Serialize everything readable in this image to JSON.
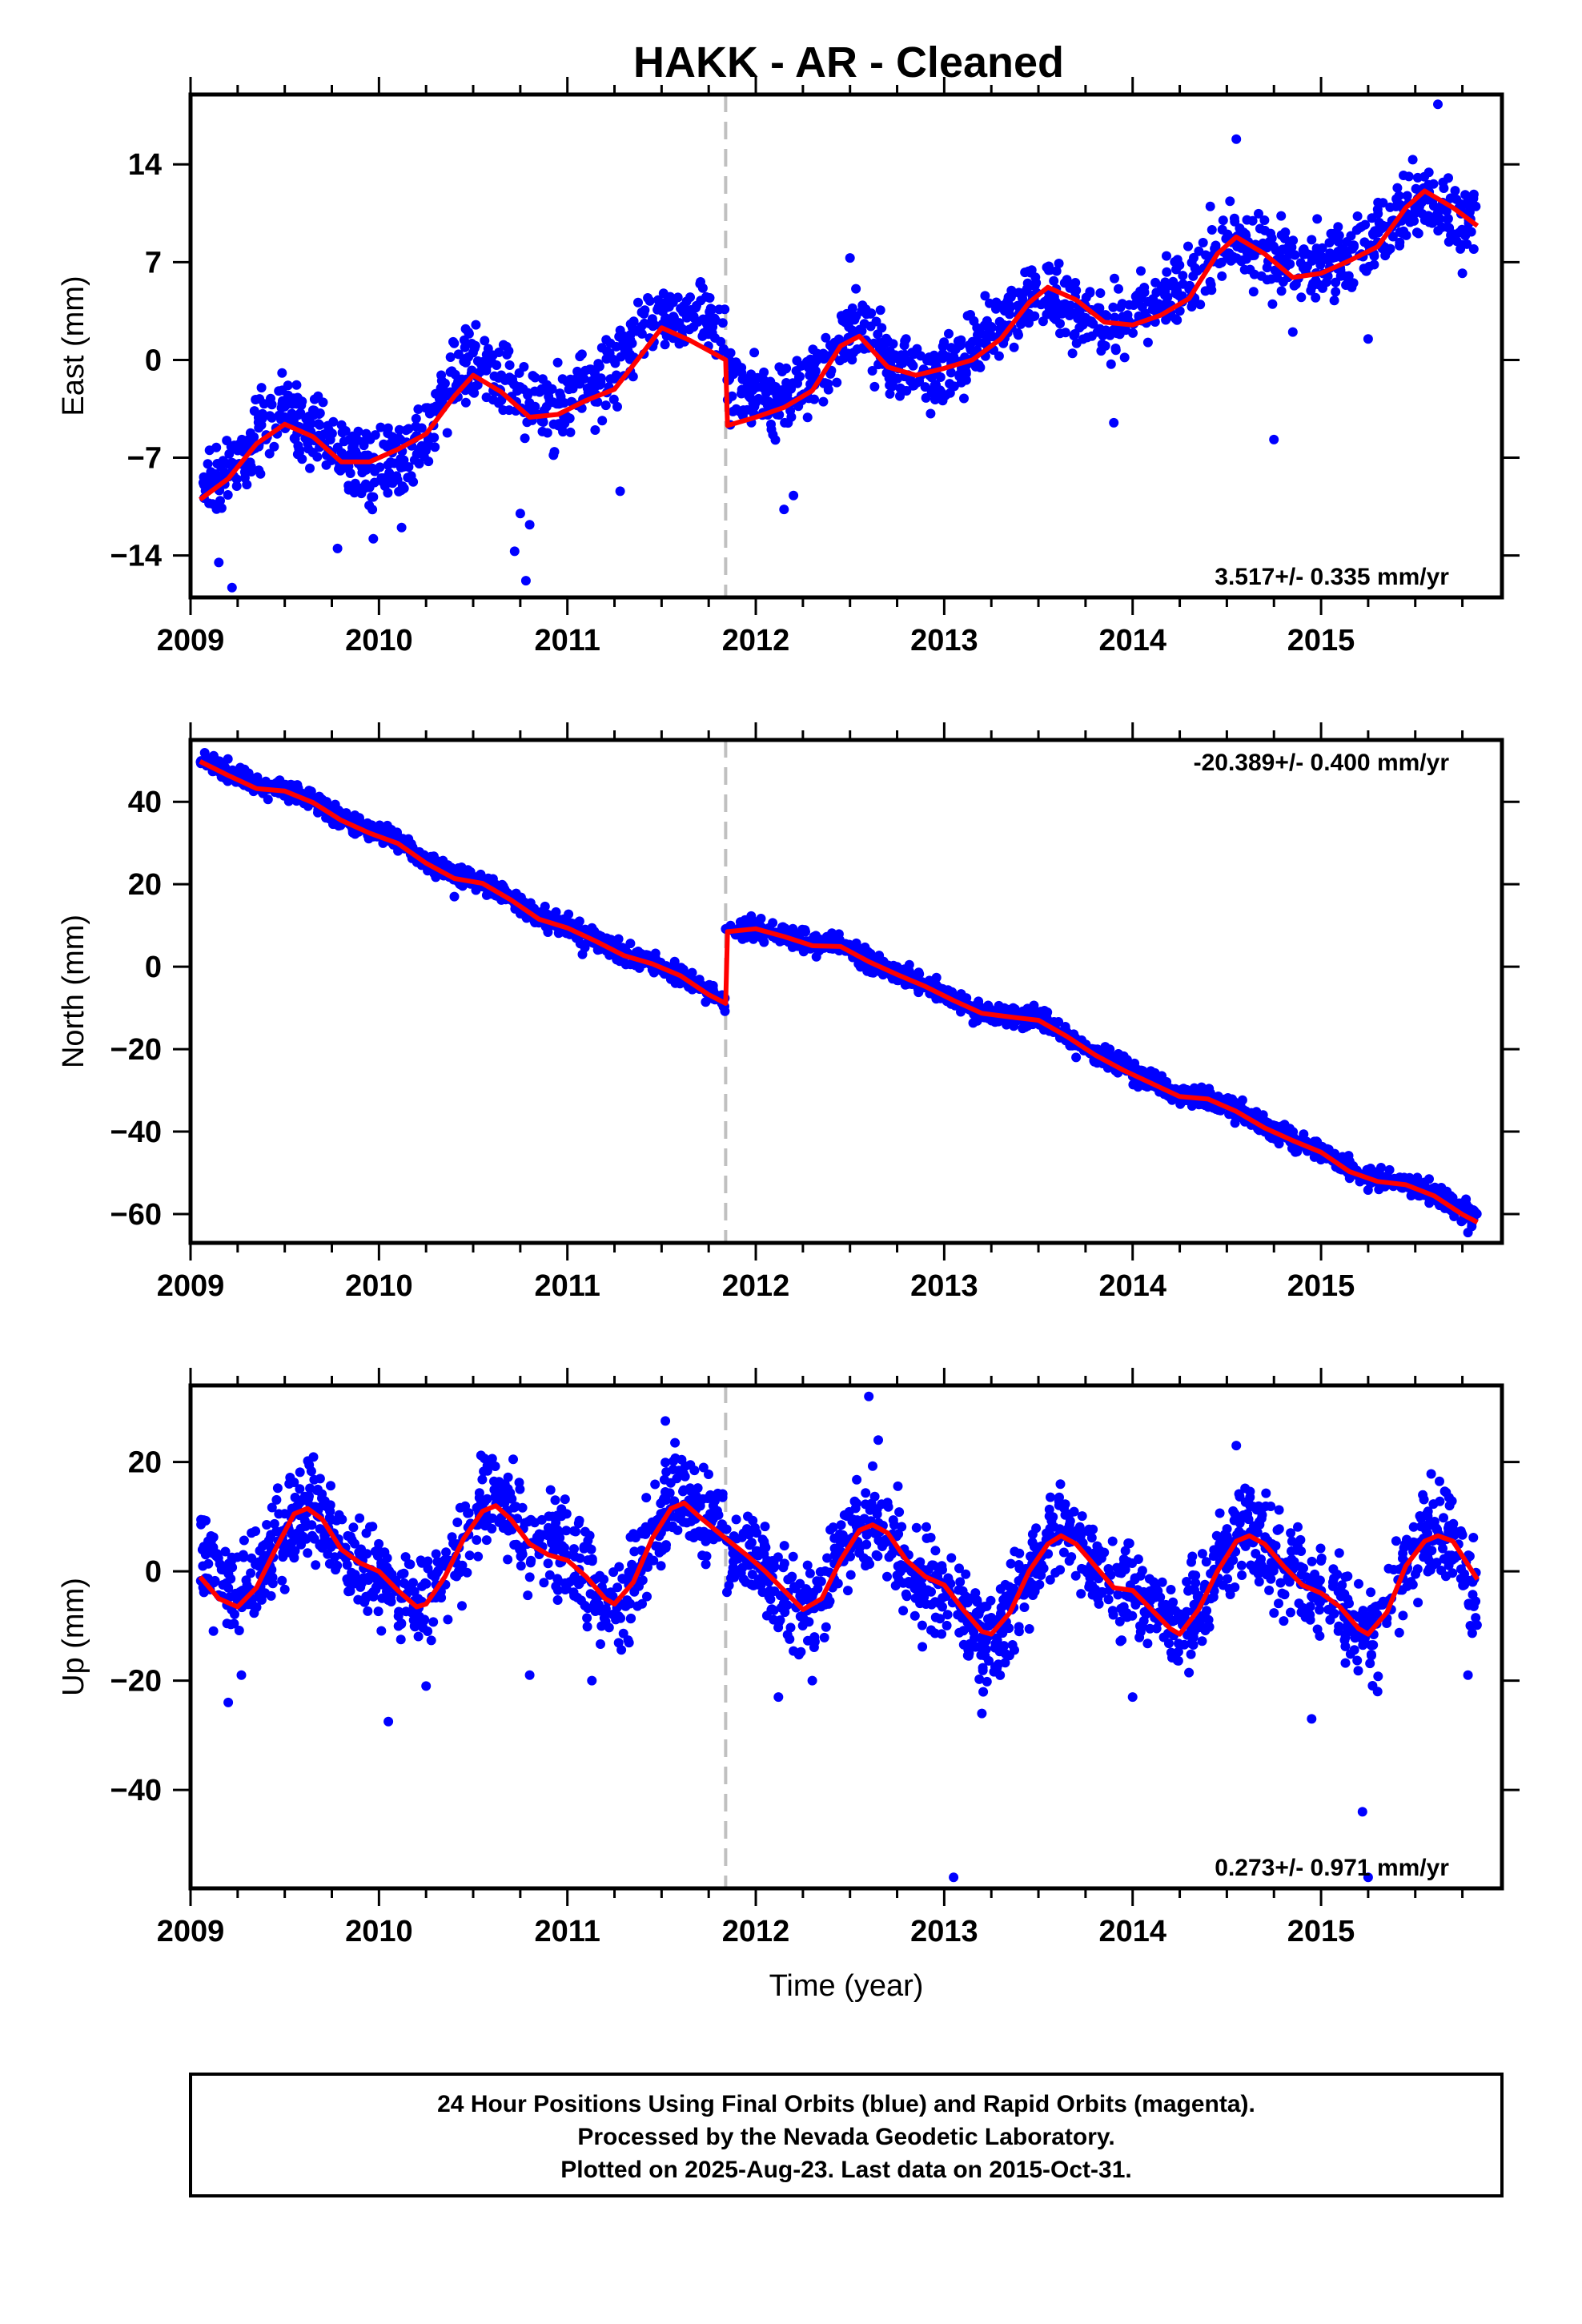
{
  "title": "HAKK  - AR - Cleaned",
  "colors": {
    "points": "#0000ff",
    "model": "#ff0000",
    "event_line": "#c0c0c0",
    "frame": "#000000"
  },
  "chart_data": [
    {
      "type": "scatter",
      "name": "east",
      "ylabel": "East (mm)",
      "xlabel": "",
      "xlim": [
        2009.0,
        2015.96
      ],
      "ylim": [
        -17.0,
        19.0
      ],
      "yticks": [
        -14,
        -7,
        0,
        7,
        14
      ],
      "xticks": [
        2009,
        2010,
        2011,
        2012,
        2013,
        2014,
        2015
      ],
      "event_x": 2011.84,
      "rate_text": "3.517+/- 0.335 mm/yr",
      "rate_position": "bottom-right",
      "model": {
        "x": [
          2009.05,
          2009.2,
          2009.35,
          2009.5,
          2009.65,
          2009.8,
          2009.95,
          2010.1,
          2010.25,
          2010.4,
          2010.5,
          2010.65,
          2010.8,
          2010.95,
          2011.1,
          2011.25,
          2011.4,
          2011.5,
          2011.65,
          2011.8,
          2011.84,
          2011.85,
          2012.0,
          2012.15,
          2012.3,
          2012.45,
          2012.55,
          2012.7,
          2012.85,
          2013.0,
          2013.15,
          2013.3,
          2013.45,
          2013.55,
          2013.7,
          2013.85,
          2014.0,
          2014.15,
          2014.3,
          2014.45,
          2014.55,
          2014.7,
          2014.85,
          2015.0,
          2015.15,
          2015.3,
          2015.45,
          2015.55,
          2015.7,
          2015.83
        ],
        "y": [
          -10.0,
          -8.5,
          -6.0,
          -4.6,
          -5.5,
          -7.3,
          -7.3,
          -6.4,
          -5.3,
          -2.6,
          -1.1,
          -2.3,
          -4.1,
          -3.9,
          -2.9,
          -2.1,
          0.5,
          2.3,
          1.4,
          0.3,
          0.0,
          -4.7,
          -4.1,
          -3.4,
          -2.2,
          1.0,
          1.7,
          -0.5,
          -1.1,
          -0.6,
          0.0,
          1.5,
          4.1,
          5.2,
          4.3,
          2.7,
          2.5,
          3.2,
          4.4,
          7.6,
          8.8,
          7.6,
          5.9,
          6.2,
          7.1,
          8.1,
          10.9,
          12.1,
          10.9,
          9.6
        ]
      },
      "points": {
        "anchors_x": [
          2009.05,
          2009.2,
          2009.35,
          2009.5,
          2009.65,
          2009.8,
          2009.95,
          2010.1,
          2010.25,
          2010.4,
          2010.5,
          2010.65,
          2010.8,
          2010.95,
          2011.1,
          2011.25,
          2011.4,
          2011.5,
          2011.65,
          2011.8,
          2011.85,
          2012.0,
          2012.15,
          2012.3,
          2012.45,
          2012.55,
          2012.7,
          2012.85,
          2013.0,
          2013.15,
          2013.3,
          2013.45,
          2013.55,
          2013.7,
          2013.85,
          2014.0,
          2014.15,
          2014.3,
          2014.45,
          2014.55,
          2014.7,
          2014.85,
          2015.0,
          2015.15,
          2015.3,
          2015.45,
          2015.55,
          2015.7,
          2015.83
        ],
        "anchors_y": [
          -8.3,
          -8.4,
          -5.4,
          -3.7,
          -5.0,
          -6.6,
          -7.8,
          -7.1,
          -5.1,
          -1.6,
          0.2,
          -1.4,
          -3.5,
          -3.4,
          -2.2,
          -0.7,
          1.9,
          3.1,
          3.2,
          2.1,
          -1.2,
          -2.6,
          -2.9,
          -1.3,
          1.4,
          2.4,
          0.1,
          -0.8,
          -1.0,
          0.3,
          2.4,
          4.6,
          4.6,
          3.3,
          1.9,
          3.1,
          4.2,
          5.9,
          8.4,
          8.6,
          7.9,
          6.6,
          6.6,
          7.6,
          8.7,
          10.8,
          11.5,
          10.3,
          9.9
        ],
        "spread": 1.3,
        "count": 1700,
        "outliers": [
          [
            2009.15,
            -14.5
          ],
          [
            2009.22,
            -16.3
          ],
          [
            2009.3,
            -17.0
          ],
          [
            2009.78,
            -13.5
          ],
          [
            2009.97,
            -12.8
          ],
          [
            2010.12,
            -12.0
          ],
          [
            2010.75,
            -11.0
          ],
          [
            2010.8,
            -11.8
          ],
          [
            2010.72,
            -13.7
          ],
          [
            2010.78,
            -15.8
          ],
          [
            2011.28,
            -9.4
          ],
          [
            2012.15,
            -10.7
          ],
          [
            2012.2,
            -9.7
          ],
          [
            2012.5,
            7.3
          ],
          [
            2013.9,
            -4.5
          ],
          [
            2014.55,
            15.8
          ],
          [
            2014.75,
            -5.7
          ],
          [
            2014.85,
            2.0
          ],
          [
            2015.25,
            1.5
          ],
          [
            2015.62,
            18.3
          ],
          [
            2015.75,
            6.2
          ]
        ]
      }
    },
    {
      "type": "scatter",
      "name": "north",
      "ylabel": "North (mm)",
      "xlabel": "",
      "xlim": [
        2009.0,
        2015.96
      ],
      "ylim": [
        -67.0,
        55.0
      ],
      "yticks": [
        -60,
        -40,
        -20,
        0,
        20,
        40
      ],
      "xticks": [
        2009,
        2010,
        2011,
        2012,
        2013,
        2014,
        2015
      ],
      "event_x": 2011.84,
      "rate_text": "-20.389+/- 0.400 mm/yr",
      "rate_position": "top-right",
      "model": {
        "x": [
          2009.05,
          2009.2,
          2009.35,
          2009.5,
          2009.65,
          2009.8,
          2009.95,
          2010.1,
          2010.25,
          2010.4,
          2010.55,
          2010.7,
          2010.85,
          2011.0,
          2011.15,
          2011.3,
          2011.45,
          2011.6,
          2011.75,
          2011.84,
          2011.85,
          2012.0,
          2012.15,
          2012.3,
          2012.45,
          2012.6,
          2012.75,
          2012.9,
          2013.05,
          2013.2,
          2013.35,
          2013.5,
          2013.65,
          2013.8,
          2013.95,
          2014.1,
          2014.25,
          2014.4,
          2014.55,
          2014.7,
          2014.85,
          2015.0,
          2015.15,
          2015.3,
          2015.45,
          2015.6,
          2015.75,
          2015.83
        ],
        "y": [
          49.8,
          46.4,
          43.2,
          42.6,
          39.8,
          35.5,
          32.4,
          29.9,
          25.1,
          21.4,
          20.2,
          16.2,
          11.5,
          9.4,
          6.2,
          2.7,
          0.7,
          -2.2,
          -6.8,
          -8.9,
          8.5,
          9.2,
          7.3,
          5.1,
          4.9,
          1.2,
          -1.9,
          -4.8,
          -8.2,
          -11.3,
          -12.2,
          -13.0,
          -16.9,
          -21.4,
          -25.1,
          -28.3,
          -31.5,
          -32.1,
          -35.1,
          -39.1,
          -42.2,
          -45.0,
          -49.7,
          -52.1,
          -52.9,
          -55.6,
          -60.1,
          -62.0
        ]
      },
      "points": {
        "anchors_x": [
          2009.05,
          2009.2,
          2009.35,
          2009.5,
          2009.65,
          2009.8,
          2009.95,
          2010.1,
          2010.25,
          2010.4,
          2010.55,
          2010.7,
          2010.85,
          2011.0,
          2011.15,
          2011.3,
          2011.45,
          2011.6,
          2011.75,
          2011.84,
          2011.85,
          2012.0,
          2012.15,
          2012.3,
          2012.45,
          2012.6,
          2012.75,
          2012.9,
          2013.05,
          2013.2,
          2013.35,
          2013.5,
          2013.65,
          2013.8,
          2013.95,
          2014.1,
          2014.25,
          2014.4,
          2014.55,
          2014.7,
          2014.85,
          2015.0,
          2015.15,
          2015.3,
          2015.45,
          2015.6,
          2015.75,
          2015.83
        ],
        "anchors_y": [
          50.5,
          47.0,
          44.0,
          43.2,
          40.3,
          36.0,
          33.0,
          30.5,
          25.5,
          22.0,
          20.5,
          16.5,
          12.0,
          10.0,
          6.5,
          3.0,
          1.0,
          -2.0,
          -6.5,
          -8.5,
          9.0,
          9.5,
          7.5,
          5.5,
          5.5,
          1.5,
          -1.5,
          -4.5,
          -8.0,
          -11.0,
          -12.0,
          -12.5,
          -16.5,
          -21.0,
          -24.5,
          -28.0,
          -31.0,
          -32.0,
          -34.5,
          -38.5,
          -42.0,
          -44.5,
          -49.0,
          -51.5,
          -52.5,
          -55.0,
          -59.0,
          -60.0
        ],
        "spread": 1.2,
        "count": 2100,
        "outliers": [
          [
            2010.4,
            17.0
          ],
          [
            2011.08,
            3.0
          ],
          [
            2012.5,
            4.0
          ],
          [
            2013.7,
            -22.0
          ],
          [
            2015.78,
            -64.5
          ],
          [
            2015.8,
            -63.0
          ]
        ]
      }
    },
    {
      "type": "scatter",
      "name": "up",
      "ylabel": "Up (mm)",
      "xlabel": "Time (year)",
      "xlim": [
        2009.0,
        2015.96
      ],
      "ylim": [
        -58.0,
        34.0
      ],
      "yticks": [
        -40,
        -20,
        0,
        20
      ],
      "xticks": [
        2009,
        2010,
        2011,
        2012,
        2013,
        2014,
        2015
      ],
      "event_x": 2011.84,
      "rate_text": "0.273+/- 0.971 mm/yr",
      "rate_position": "bottom-right",
      "model": {
        "x": [
          2009.05,
          2009.15,
          2009.25,
          2009.35,
          2009.45,
          2009.55,
          2009.62,
          2009.7,
          2009.8,
          2009.9,
          2010.0,
          2010.1,
          2010.2,
          2010.25,
          2010.35,
          2010.45,
          2010.55,
          2010.62,
          2010.7,
          2010.8,
          2010.9,
          2011.0,
          2011.1,
          2011.2,
          2011.25,
          2011.35,
          2011.45,
          2011.55,
          2011.62,
          2011.7,
          2011.84,
          2011.95,
          2012.05,
          2012.15,
          2012.25,
          2012.35,
          2012.45,
          2012.55,
          2012.62,
          2012.7,
          2012.8,
          2012.9,
          2013.0,
          2013.1,
          2013.2,
          2013.25,
          2013.35,
          2013.45,
          2013.55,
          2013.62,
          2013.7,
          2013.8,
          2013.9,
          2014.0,
          2014.1,
          2014.2,
          2014.25,
          2014.35,
          2014.45,
          2014.55,
          2014.62,
          2014.7,
          2014.8,
          2014.9,
          2015.0,
          2015.1,
          2015.2,
          2015.25,
          2015.35,
          2015.45,
          2015.55,
          2015.62,
          2015.7,
          2015.83
        ],
        "y": [
          -1.0,
          -5.0,
          -6.5,
          -3.0,
          4.0,
          10.5,
          11.5,
          9.5,
          4.0,
          1.5,
          0.0,
          -3.5,
          -6.5,
          -6.0,
          -1.0,
          6.0,
          11.0,
          12.0,
          9.5,
          5.0,
          3.0,
          2.0,
          -1.0,
          -5.0,
          -6.0,
          -2.0,
          6.0,
          11.5,
          12.5,
          10.0,
          6.0,
          3.0,
          0.0,
          -3.5,
          -7.0,
          -5.0,
          2.0,
          7.5,
          8.5,
          7.0,
          2.0,
          -1.0,
          -2.5,
          -7.0,
          -11.0,
          -11.5,
          -7.5,
          0.0,
          5.0,
          6.5,
          5.0,
          1.0,
          -3.0,
          -3.5,
          -7.0,
          -10.5,
          -11.5,
          -7.0,
          0.0,
          5.5,
          6.5,
          5.0,
          1.0,
          -2.5,
          -4.0,
          -6.5,
          -10.5,
          -11.5,
          -7.5,
          1.0,
          5.5,
          6.5,
          5.5,
          -1.5
        ]
      },
      "points": {
        "anchors_x": [
          2009.05,
          2009.15,
          2009.25,
          2009.35,
          2009.45,
          2009.55,
          2009.62,
          2009.7,
          2009.8,
          2009.9,
          2010.0,
          2010.1,
          2010.2,
          2010.25,
          2010.35,
          2010.45,
          2010.55,
          2010.62,
          2010.7,
          2010.8,
          2010.9,
          2011.0,
          2011.1,
          2011.2,
          2011.25,
          2011.35,
          2011.45,
          2011.55,
          2011.62,
          2011.7,
          2011.84,
          2011.95,
          2012.05,
          2012.15,
          2012.25,
          2012.35,
          2012.45,
          2012.55,
          2012.62,
          2012.7,
          2012.8,
          2012.9,
          2013.0,
          2013.1,
          2013.2,
          2013.25,
          2013.35,
          2013.45,
          2013.55,
          2013.62,
          2013.7,
          2013.8,
          2013.9,
          2014.0,
          2014.1,
          2014.2,
          2014.25,
          2014.35,
          2014.45,
          2014.55,
          2014.62,
          2014.7,
          2014.8,
          2014.9,
          2015.0,
          2015.1,
          2015.2,
          2015.25,
          2015.35,
          2015.45,
          2015.55,
          2015.62,
          2015.7,
          2015.83
        ],
        "anchors_y": [
          3.0,
          -2.0,
          -5.0,
          -2.0,
          4.0,
          10.0,
          12.0,
          9.0,
          4.0,
          0.0,
          -1.0,
          -4.0,
          -7.0,
          -6.0,
          -1.0,
          6.0,
          12.0,
          13.0,
          10.0,
          6.0,
          5.0,
          3.0,
          -1.0,
          -6.0,
          -6.0,
          -1.0,
          6.0,
          13.0,
          14.0,
          11.0,
          7.0,
          4.0,
          0.0,
          -4.0,
          -8.0,
          -5.0,
          3.0,
          9.0,
          9.0,
          6.0,
          1.0,
          -2.0,
          -3.0,
          -8.0,
          -12.0,
          -12.0,
          -7.0,
          0.0,
          5.0,
          7.0,
          5.0,
          1.0,
          -3.0,
          -4.0,
          -7.0,
          -10.0,
          -11.0,
          -6.0,
          1.0,
          7.0,
          8.0,
          5.0,
          1.0,
          -2.0,
          -4.0,
          -7.0,
          -11.0,
          -12.0,
          -7.0,
          1.0,
          6.0,
          7.0,
          4.0,
          -5.0
        ],
        "spread": 4.2,
        "count": 2000,
        "outliers": [
          [
            2009.2,
            -24.0
          ],
          [
            2009.27,
            -19.0
          ],
          [
            2010.05,
            -27.5
          ],
          [
            2010.25,
            -21.0
          ],
          [
            2010.8,
            -19.0
          ],
          [
            2011.13,
            -20.0
          ],
          [
            2011.52,
            27.5
          ],
          [
            2012.12,
            -23.0
          ],
          [
            2012.3,
            -20.0
          ],
          [
            2012.6,
            32.0
          ],
          [
            2012.65,
            24.0
          ],
          [
            2013.05,
            -56.0
          ],
          [
            2013.2,
            -26.0
          ],
          [
            2014.0,
            -23.0
          ],
          [
            2014.55,
            23.0
          ],
          [
            2014.95,
            -27.0
          ],
          [
            2015.22,
            -44.0
          ],
          [
            2015.25,
            -56.0
          ],
          [
            2015.3,
            -22.0
          ],
          [
            2015.78,
            -19.0
          ]
        ]
      }
    }
  ],
  "footer": {
    "line1": "24 Hour Positions Using Final Orbits (blue) and Rapid Orbits (magenta).",
    "line2": "Processed by the Nevada Geodetic Laboratory.",
    "line3": "Plotted on 2025-Aug-23. Last data on 2015-Oct-31."
  }
}
